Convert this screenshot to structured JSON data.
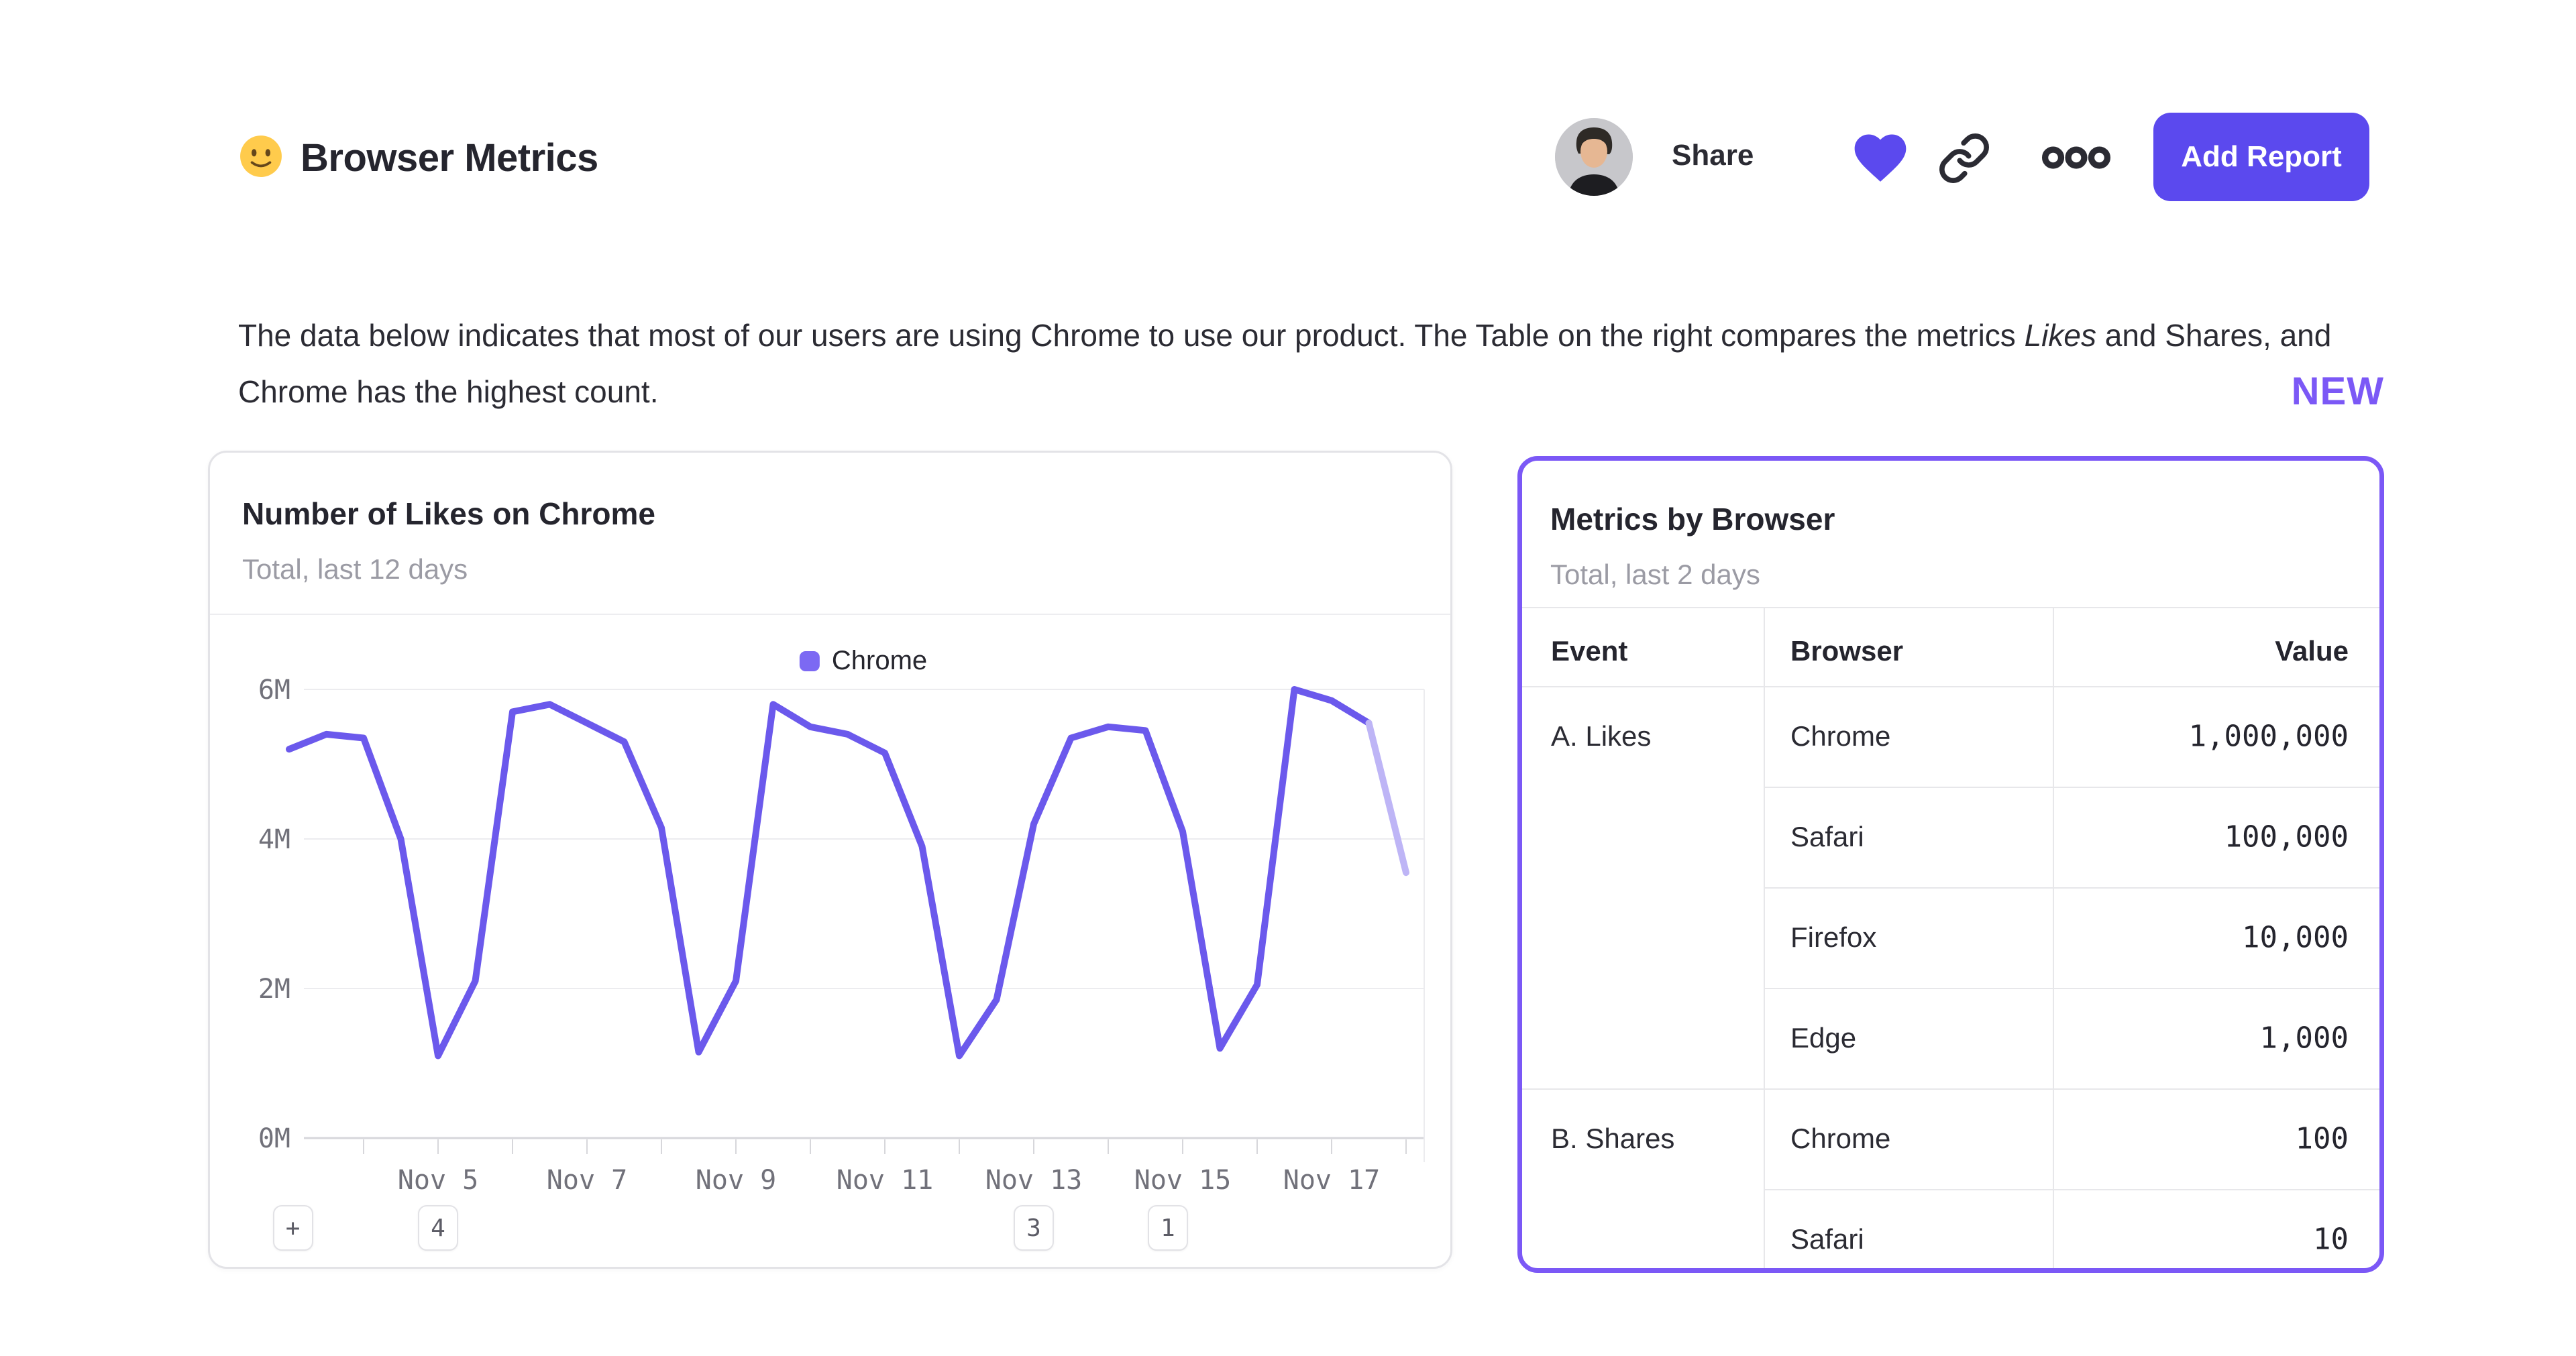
{
  "header": {
    "emoji_icon": "slightly-smiling-face",
    "title": "Browser Metrics",
    "share_label": "Share",
    "add_report_label": "Add Report",
    "icons": [
      "user-avatar",
      "favorite-heart",
      "copy-link",
      "more-options"
    ]
  },
  "description": {
    "segments": [
      {
        "text": "The data below indicates that most of our users are using Chrome to use our product. The Table on the right compares the metrics ",
        "italic": false
      },
      {
        "text": "Likes",
        "italic": true
      },
      {
        "text": " and Shares, and Chrome has the highest count.",
        "italic": false
      }
    ]
  },
  "new_label": "NEW",
  "chart_card": {
    "title": "Number of Likes on Chrome",
    "subtitle": "Total, last 12 days",
    "footer_badges": [
      {
        "label": "+",
        "day": 3.05
      },
      {
        "label": "4",
        "day": 5
      },
      {
        "label": "3",
        "day": 13
      },
      {
        "label": "1",
        "day": 14.8
      }
    ]
  },
  "chart_data": {
    "type": "line",
    "title": "Number of Likes on Chrome",
    "subtitle": "Total, last 12 days",
    "legend_position": "top-center",
    "grid": "horizontal",
    "ylim": [
      0,
      6000000
    ],
    "y_ticks": [
      {
        "label": "0M",
        "value": 0
      },
      {
        "label": "2M",
        "value": 2
      },
      {
        "label": "4M",
        "value": 4
      },
      {
        "label": "6M",
        "value": 6
      }
    ],
    "x_ticks": [
      {
        "label": "Nov 5",
        "day": 5
      },
      {
        "label": "Nov 7",
        "day": 7
      },
      {
        "label": "Nov 9",
        "day": 9
      },
      {
        "label": "Nov 11",
        "day": 11
      },
      {
        "label": "Nov 13",
        "day": 13
      },
      {
        "label": "Nov 15",
        "day": 15
      },
      {
        "label": "Nov 17",
        "day": 17
      }
    ],
    "x_minor_tick_days": [
      4,
      5,
      6,
      7,
      8,
      9,
      10,
      11,
      12,
      13,
      14,
      15,
      16,
      17,
      18
    ],
    "series": [
      {
        "name": "Chrome",
        "color": "#6b59ec",
        "faded_color": "#beb5f6",
        "units": "millions",
        "points": [
          [
            3.0,
            5.2
          ],
          [
            3.5,
            5.4
          ],
          [
            4.0,
            5.35
          ],
          [
            4.5,
            4.0
          ],
          [
            5.0,
            1.1
          ],
          [
            5.5,
            2.1
          ],
          [
            6.0,
            5.7
          ],
          [
            6.5,
            5.8
          ],
          [
            7.0,
            5.55
          ],
          [
            7.5,
            5.3
          ],
          [
            8.0,
            4.15
          ],
          [
            8.5,
            1.15
          ],
          [
            9.0,
            2.1
          ],
          [
            9.5,
            5.8
          ],
          [
            10.0,
            5.5
          ],
          [
            10.5,
            5.4
          ],
          [
            11.0,
            5.15
          ],
          [
            11.5,
            3.9
          ],
          [
            12.0,
            1.1
          ],
          [
            12.5,
            1.85
          ],
          [
            13.0,
            4.2
          ],
          [
            13.5,
            5.35
          ],
          [
            14.0,
            5.5
          ],
          [
            14.5,
            5.45
          ],
          [
            15.0,
            4.1
          ],
          [
            15.5,
            1.2
          ],
          [
            16.0,
            2.05
          ],
          [
            16.5,
            6.0
          ],
          [
            17.0,
            5.85
          ],
          [
            17.5,
            5.55
          ],
          [
            18.0,
            3.55
          ]
        ],
        "faded_tail_points": 1
      }
    ]
  },
  "table_card": {
    "title": "Metrics by Browser",
    "subtitle": "Total, last 2 days",
    "columns": [
      "Event",
      "Browser",
      "Value"
    ],
    "groups": [
      {
        "event": "A. Likes",
        "rows": [
          [
            "Chrome",
            "1,000,000"
          ],
          [
            "Safari",
            "100,000"
          ],
          [
            "Firefox",
            "10,000"
          ],
          [
            "Edge",
            "1,000"
          ]
        ]
      },
      {
        "event": "B. Shares",
        "rows": [
          [
            "Chrome",
            "100"
          ],
          [
            "Safari",
            "10"
          ]
        ]
      }
    ]
  },
  "colors": {
    "accent": "#5b49ee",
    "line": "#6b59ec",
    "line_faded": "#beb5f6",
    "new_purple": "#7b58f6",
    "grid": "#ececef",
    "axis_line": "#d7d7db",
    "axis_text": "#71717a",
    "table_border": "#e7e7ea",
    "text_dark": "#25252e",
    "text_grey": "#9b9ba4"
  }
}
